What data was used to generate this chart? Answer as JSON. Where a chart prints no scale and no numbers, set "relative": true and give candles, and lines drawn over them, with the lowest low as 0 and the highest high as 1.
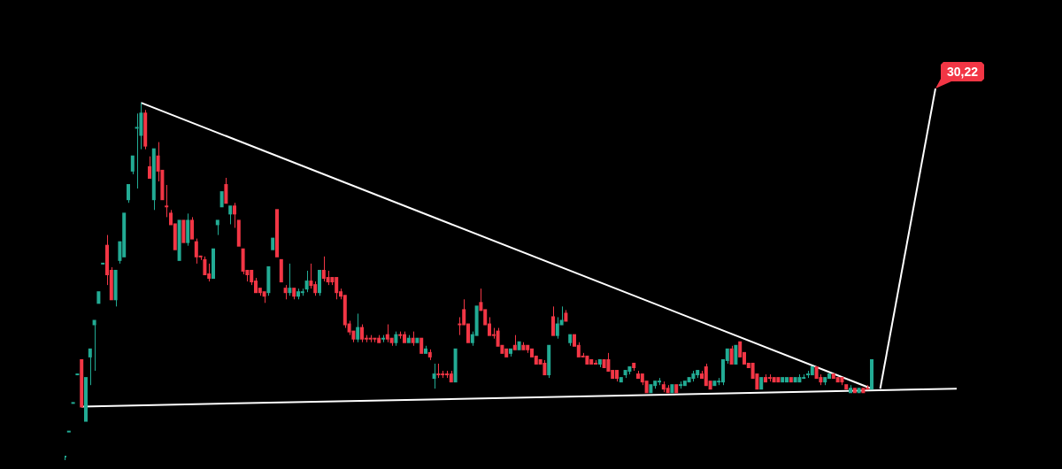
{
  "chart_data": {
    "type": "candlestick",
    "relative": true,
    "legend": false,
    "categories": [
      null,
      null,
      null,
      null,
      null,
      null,
      null,
      null,
      null,
      null,
      null,
      null,
      null,
      null,
      null,
      null,
      null,
      null,
      null,
      null,
      null,
      null,
      null,
      null,
      null,
      null,
      null,
      null,
      null,
      null,
      null,
      null,
      null,
      null,
      null,
      null,
      null,
      null,
      null,
      null,
      null,
      null,
      null,
      null,
      null,
      null,
      null,
      null,
      null,
      null,
      null,
      null,
      null,
      null,
      null,
      null,
      null,
      null,
      null,
      null,
      null,
      null,
      null,
      null,
      null,
      null,
      null,
      null,
      null,
      null,
      null,
      null,
      null,
      null,
      null,
      null,
      null,
      null,
      null,
      null,
      null,
      null,
      null,
      null,
      null,
      null,
      null,
      null,
      null,
      null,
      null,
      null,
      null,
      null,
      null,
      null,
      null,
      null,
      null,
      null,
      null,
      null,
      null,
      null,
      null,
      null,
      null,
      null,
      null,
      null,
      null,
      null,
      null,
      null,
      null,
      null,
      null,
      null,
      null,
      null,
      null,
      null,
      null,
      null,
      null,
      null,
      null,
      null,
      null,
      null,
      null,
      null,
      null,
      null,
      null,
      null,
      null,
      null,
      null,
      null,
      null,
      null,
      null,
      null,
      null,
      null,
      null,
      null,
      null,
      null,
      null,
      null,
      null,
      null,
      null,
      null,
      null,
      null,
      null,
      null,
      null,
      null,
      null,
      null,
      null,
      null,
      null,
      null,
      null,
      null,
      null,
      null,
      null,
      null,
      null,
      null,
      null,
      null,
      null,
      null,
      null,
      null,
      null,
      null,
      null,
      null,
      null,
      null,
      null,
      null,
      null,
      null,
      null,
      null,
      null,
      null,
      null,
      null,
      null,
      null,
      null,
      null,
      null,
      null,
      null,
      null,
      null,
      null,
      null,
      null,
      null
    ],
    "ohlc": [
      [
        0.01,
        0.01,
        0,
        0.01
      ],
      [
        0.08,
        0.08,
        0.08,
        0.08
      ],
      [
        0.16,
        0.16,
        0.16,
        0.16
      ],
      [
        0.24,
        0.24,
        0.24,
        0.24
      ],
      [
        0.28,
        0.28,
        0.15,
        0.15
      ],
      [
        0.11,
        0.23,
        0.11,
        0.23
      ],
      [
        0.29,
        0.31,
        0.21,
        0.31
      ],
      [
        0.38,
        0.39,
        0.25,
        0.39
      ],
      [
        0.44,
        0.47,
        0.44,
        0.47
      ],
      [
        0.55,
        0.55,
        0.55,
        0.55
      ],
      [
        0.6,
        0.63,
        0.49,
        0.52
      ],
      [
        0.53,
        0.54,
        0.45,
        0.45
      ],
      [
        0.45,
        0.53,
        0.43,
        0.53
      ],
      [
        0.56,
        0.61,
        0.55,
        0.61
      ],
      [
        0.57,
        0.69,
        0.57,
        0.69
      ],
      [
        0.73,
        0.77,
        0.72,
        0.77
      ],
      [
        0.81,
        0.85,
        0.8,
        0.85
      ],
      [
        0.93,
        0.97,
        0.76,
        0.93
      ],
      [
        0.91,
        1,
        0.87,
        0.97
      ],
      [
        0.97,
        0.98,
        0.87,
        0.88
      ],
      [
        0.82,
        0.85,
        0.79,
        0.79
      ],
      [
        0.73,
        0.87,
        0.7,
        0.87
      ],
      [
        0.85,
        0.89,
        0.78,
        0.81
      ],
      [
        0.81,
        0.81,
        0.73,
        0.73
      ],
      [
        0.71,
        0.77,
        0.68,
        0.71
      ],
      [
        0.69,
        0.7,
        0.66,
        0.66
      ],
      [
        0.66,
        0.66,
        0.59,
        0.59
      ],
      [
        0.56,
        0.67,
        0.56,
        0.67
      ],
      [
        0.67,
        0.67,
        0.61,
        0.61
      ],
      [
        0.61,
        0.69,
        0.6,
        0.67
      ],
      [
        0.67,
        0.68,
        0.62,
        0.62
      ],
      [
        0.61,
        0.62,
        0.55,
        0.57
      ],
      [
        0.57,
        0.57,
        0.56,
        0.57
      ],
      [
        0.56,
        0.57,
        0.52,
        0.52
      ],
      [
        0.52,
        0.55,
        0.5,
        0.51
      ],
      [
        0.51,
        0.59,
        0.51,
        0.59
      ],
      [
        0.66,
        0.67,
        0.63,
        0.67
      ],
      [
        0.71,
        0.75,
        0.71,
        0.75
      ],
      [
        0.77,
        0.79,
        0.72,
        0.72
      ],
      [
        0.69,
        0.71,
        0.66,
        0.71
      ],
      [
        0.71,
        0.72,
        0.65,
        0.69
      ],
      [
        0.67,
        0.67,
        0.6,
        0.6
      ],
      [
        0.59,
        0.59,
        0.52,
        0.53
      ],
      [
        0.53,
        0.53,
        0.5,
        0.52
      ],
      [
        0.53,
        0.53,
        0.49,
        0.5
      ],
      [
        0.5,
        0.51,
        0.47,
        0.47
      ],
      [
        0.48,
        0.48,
        0.46,
        0.47
      ],
      [
        0.47,
        0.47,
        0.44,
        0.46
      ],
      [
        0.47,
        0.54,
        0.46,
        0.54
      ],
      [
        0.59,
        0.62,
        0.59,
        0.62
      ],
      [
        0.7,
        0.7,
        0.57,
        0.57
      ],
      [
        0.56,
        0.56,
        0.5,
        0.5
      ],
      [
        0.48,
        0.49,
        0.45,
        0.47
      ],
      [
        0.47,
        0.55,
        0.46,
        0.48
      ],
      [
        0.48,
        0.48,
        0.45,
        0.46
      ],
      [
        0.46,
        0.48,
        0.45,
        0.47
      ],
      [
        0.47,
        0.48,
        0.46,
        0.47
      ],
      [
        0.48,
        0.53,
        0.47,
        0.5
      ],
      [
        0.5,
        0.55,
        0.48,
        0.49
      ],
      [
        0.49,
        0.5,
        0.46,
        0.47
      ],
      [
        0.47,
        0.53,
        0.46,
        0.53
      ],
      [
        0.53,
        0.57,
        0.5,
        0.51
      ],
      [
        0.51,
        0.53,
        0.49,
        0.5
      ],
      [
        0.51,
        0.51,
        0.49,
        0.5
      ],
      [
        0.51,
        0.51,
        0.45,
        0.47
      ],
      [
        0.47,
        0.48,
        0.45,
        0.46
      ],
      [
        0.46,
        0.46,
        0.37,
        0.38
      ],
      [
        0.38,
        0.39,
        0.35,
        0.36
      ],
      [
        0.36,
        0.36,
        0.33,
        0.34
      ],
      [
        0.34,
        0.41,
        0.33,
        0.37
      ],
      [
        0.37,
        0.38,
        0.33,
        0.34
      ],
      [
        0.34,
        0.35,
        0.33,
        0.34
      ],
      [
        0.34,
        0.35,
        0.33,
        0.34
      ],
      [
        0.34,
        0.34,
        0.33,
        0.34
      ],
      [
        0.34,
        0.35,
        0.33,
        0.33
      ],
      [
        0.34,
        0.35,
        0.33,
        0.34
      ],
      [
        0.35,
        0.38,
        0.33,
        0.34
      ],
      [
        0.34,
        0.34,
        0.32,
        0.33
      ],
      [
        0.33,
        0.36,
        0.32,
        0.35
      ],
      [
        0.35,
        0.36,
        0.34,
        0.35
      ],
      [
        0.35,
        0.36,
        0.33,
        0.33
      ],
      [
        0.33,
        0.35,
        0.33,
        0.34
      ],
      [
        0.34,
        0.36,
        0.32,
        0.33
      ],
      [
        0.33,
        0.34,
        0.33,
        0.34
      ],
      [
        0.34,
        0.34,
        0.3,
        0.3
      ],
      [
        0.3,
        0.32,
        0.3,
        0.31
      ],
      [
        0.3,
        0.31,
        0.28,
        0.29
      ],
      [
        0.23,
        0.27,
        0.2,
        0.24
      ],
      [
        0.24,
        0.27,
        0.23,
        0.24
      ],
      [
        0.24,
        0.25,
        0.23,
        0.24
      ],
      [
        0.24,
        0.25,
        0.23,
        0.24
      ],
      [
        0.24,
        0.25,
        0.22,
        0.22
      ],
      [
        0.22,
        0.31,
        0.22,
        0.31
      ],
      [
        0.38,
        0.4,
        0.35,
        0.38
      ],
      [
        0.42,
        0.45,
        0.38,
        0.38
      ],
      [
        0.38,
        0.38,
        0.33,
        0.33
      ],
      [
        0.33,
        0.36,
        0.32,
        0.35
      ],
      [
        0.35,
        0.43,
        0.35,
        0.43
      ],
      [
        0.44,
        0.48,
        0.42,
        0.42
      ],
      [
        0.42,
        0.42,
        0.38,
        0.38
      ],
      [
        0.38,
        0.4,
        0.35,
        0.35
      ],
      [
        0.35,
        0.37,
        0.34,
        0.35
      ],
      [
        0.36,
        0.37,
        0.32,
        0.32
      ],
      [
        0.32,
        0.32,
        0.3,
        0.3
      ],
      [
        0.31,
        0.31,
        0.29,
        0.29
      ],
      [
        0.3,
        0.31,
        0.29,
        0.31
      ],
      [
        0.32,
        0.35,
        0.31,
        0.31
      ],
      [
        0.31,
        0.33,
        0.31,
        0.33
      ],
      [
        0.32,
        0.33,
        0.31,
        0.31
      ],
      [
        0.32,
        0.32,
        0.3,
        0.31
      ],
      [
        0.31,
        0.31,
        0.29,
        0.29
      ],
      [
        0.29,
        0.29,
        0.27,
        0.27
      ],
      [
        0.28,
        0.28,
        0.27,
        0.27
      ],
      [
        0.27,
        0.28,
        0.24,
        0.24
      ],
      [
        0.24,
        0.32,
        0.23,
        0.32
      ],
      [
        0.4,
        0.43,
        0.35,
        0.35
      ],
      [
        0.35,
        0.4,
        0.34,
        0.38
      ],
      [
        0.38,
        0.43,
        0.38,
        0.39
      ],
      [
        0.41,
        0.42,
        0.39,
        0.39
      ],
      [
        0.33,
        0.35,
        0.32,
        0.35
      ],
      [
        0.35,
        0.35,
        0.32,
        0.32
      ],
      [
        0.32,
        0.33,
        0.29,
        0.29
      ],
      [
        0.29,
        0.3,
        0.29,
        0.29
      ],
      [
        0.29,
        0.29,
        0.27,
        0.27
      ],
      [
        0.28,
        0.28,
        0.27,
        0.27
      ],
      [
        0.27,
        0.28,
        0.27,
        0.27
      ],
      [
        0.27,
        0.28,
        0.26,
        0.28
      ],
      [
        0.28,
        0.28,
        0.26,
        0.26
      ],
      [
        0.28,
        0.3,
        0.25,
        0.25
      ],
      [
        0.25,
        0.25,
        0.23,
        0.23
      ],
      [
        0.25,
        0.25,
        0.22,
        0.23
      ],
      [
        0.22,
        0.23,
        0.22,
        0.23
      ],
      [
        0.24,
        0.25,
        0.23,
        0.25
      ],
      [
        0.25,
        0.26,
        0.24,
        0.26
      ],
      [
        0.27,
        0.27,
        0.25,
        0.26
      ],
      [
        0.24,
        0.25,
        0.23,
        0.23
      ],
      [
        0.24,
        0.24,
        0.21,
        0.22
      ],
      [
        0.22,
        0.22,
        0.19,
        0.19
      ],
      [
        0.19,
        0.21,
        0.19,
        0.21
      ],
      [
        0.21,
        0.22,
        0.2,
        0.22
      ],
      [
        0.22,
        0.23,
        0.21,
        0.22
      ],
      [
        0.21,
        0.22,
        0.19,
        0.2
      ],
      [
        0.2,
        0.21,
        0.19,
        0.19
      ],
      [
        0.19,
        0.21,
        0.19,
        0.21
      ],
      [
        0.21,
        0.21,
        0.19,
        0.19
      ],
      [
        0.21,
        0.22,
        0.2,
        0.21
      ],
      [
        0.21,
        0.22,
        0.21,
        0.22
      ],
      [
        0.22,
        0.23,
        0.22,
        0.23
      ],
      [
        0.23,
        0.25,
        0.22,
        0.24
      ],
      [
        0.24,
        0.25,
        0.23,
        0.25
      ],
      [
        0.24,
        0.25,
        0.23,
        0.23
      ],
      [
        0.26,
        0.27,
        0.21,
        0.21
      ],
      [
        0.22,
        0.22,
        0.2,
        0.2
      ],
      [
        0.21,
        0.22,
        0.21,
        0.22
      ],
      [
        0.22,
        0.23,
        0.21,
        0.22
      ],
      [
        0.22,
        0.28,
        0.21,
        0.28
      ],
      [
        0.28,
        0.31,
        0.27,
        0.31
      ],
      [
        0.31,
        0.32,
        0.27,
        0.27
      ],
      [
        0.27,
        0.32,
        0.27,
        0.32
      ],
      [
        0.33,
        0.33,
        0.29,
        0.29
      ],
      [
        0.3,
        0.3,
        0.27,
        0.27
      ],
      [
        0.27,
        0.27,
        0.26,
        0.26
      ],
      [
        0.27,
        0.27,
        0.23,
        0.23
      ],
      [
        0.24,
        0.24,
        0.2,
        0.2
      ],
      [
        0.2,
        0.23,
        0.2,
        0.23
      ],
      [
        0.23,
        0.24,
        0.22,
        0.22
      ],
      [
        0.23,
        0.24,
        0.22,
        0.23
      ],
      [
        0.23,
        0.23,
        0.22,
        0.22
      ],
      [
        0.23,
        0.23,
        0.22,
        0.22
      ],
      [
        0.22,
        0.23,
        0.22,
        0.23
      ],
      [
        0.22,
        0.23,
        0.22,
        0.23
      ],
      [
        0.23,
        0.23,
        0.22,
        0.22
      ],
      [
        0.22,
        0.23,
        0.22,
        0.23
      ],
      [
        0.22,
        0.24,
        0.22,
        0.23
      ],
      [
        0.23,
        0.24,
        0.23,
        0.23
      ],
      [
        0.24,
        0.25,
        0.23,
        0.24
      ],
      [
        0.24,
        0.26,
        0.24,
        0.26
      ],
      [
        0.26,
        0.26,
        0.23,
        0.23
      ],
      [
        0.23,
        0.24,
        0.21,
        0.22
      ],
      [
        0.22,
        0.23,
        0.21,
        0.23
      ],
      [
        0.23,
        0.24,
        0.23,
        0.24
      ],
      [
        0.24,
        0.24,
        0.23,
        0.23
      ],
      [
        0.23,
        0.23,
        0.22,
        0.22
      ],
      [
        0.23,
        0.23,
        0.21,
        0.22
      ],
      [
        0.21,
        0.21,
        0.2,
        0.2
      ],
      [
        0.19,
        0.21,
        0.19,
        0.2
      ],
      [
        0.2,
        0.2,
        0.19,
        0.19
      ],
      [
        0.19,
        0.2,
        0.19,
        0.2
      ],
      [
        0.2,
        0.2,
        0.19,
        0.19
      ],
      [
        0.2,
        0.21,
        0.2,
        0.2
      ],
      [
        0.2,
        0.28,
        0.2,
        0.28
      ],
      null,
      null,
      null,
      null,
      null,
      null,
      null,
      null,
      null,
      null,
      null,
      null,
      null,
      null,
      null,
      null,
      null,
      null,
      null,
      null
    ],
    "colors": [
      "#22ab94",
      "#22ab94",
      "#22ab94",
      "#22ab94",
      "#f23645",
      "#22ab94",
      "#22ab94",
      "#22ab94",
      "#22ab94",
      "#22ab94",
      "#f23645",
      "#f23645",
      "#22ab94",
      "#22ab94",
      "#22ab94",
      "#22ab94",
      "#22ab94",
      "#22ab94",
      "#22ab94",
      "#f23645",
      "#f23645",
      "#22ab94",
      "#f23645",
      "#f23645",
      "#f23645",
      "#f23645",
      "#f23645",
      "#22ab94",
      "#f23645",
      "#22ab94",
      "#f23645",
      "#f23645",
      "#f23645",
      "#f23645",
      "#f23645",
      "#22ab94",
      "#22ab94",
      "#22ab94",
      "#f23645",
      "#22ab94",
      "#f23645",
      "#f23645",
      "#f23645",
      "#f23645",
      "#f23645",
      "#f23645",
      "#f23645",
      "#f23645",
      "#22ab94",
      "#22ab94",
      "#f23645",
      "#f23645",
      "#f23645",
      "#22ab94",
      "#f23645",
      "#22ab94",
      "#22ab94",
      "#22ab94",
      "#f23645",
      "#f23645",
      "#22ab94",
      "#f23645",
      "#f23645",
      "#f23645",
      "#f23645",
      "#f23645",
      "#f23645",
      "#f23645",
      "#f23645",
      "#22ab94",
      "#f23645",
      "#f23645",
      "#f23645",
      "#f23645",
      "#f23645",
      "#22ab94",
      "#f23645",
      "#f23645",
      "#22ab94",
      "#f23645",
      "#f23645",
      "#22ab94",
      "#f23645",
      "#22ab94",
      "#f23645",
      "#22ab94",
      "#f23645",
      "#22ab94",
      "#f23645",
      "#f23645",
      "#f23645",
      "#f23645",
      "#22ab94",
      "#f23645",
      "#f23645",
      "#f23645",
      "#22ab94",
      "#22ab94",
      "#f23645",
      "#f23645",
      "#f23645",
      "#f23645",
      "#f23645",
      "#f23645",
      "#f23645",
      "#22ab94",
      "#f23645",
      "#22ab94",
      "#f23645",
      "#f23645",
      "#f23645",
      "#f23645",
      "#f23645",
      "#f23645",
      "#22ab94",
      "#f23645",
      "#22ab94",
      "#22ab94",
      "#f23645",
      "#22ab94",
      "#f23645",
      "#f23645",
      "#f23645",
      "#f23645",
      "#f23645",
      "#f23645",
      "#22ab94",
      "#f23645",
      "#f23645",
      "#f23645",
      "#f23645",
      "#22ab94",
      "#22ab94",
      "#22ab94",
      "#f23645",
      "#f23645",
      "#f23645",
      "#f23645",
      "#22ab94",
      "#22ab94",
      "#22ab94",
      "#f23645",
      "#f23645",
      "#22ab94",
      "#f23645",
      "#22ab94",
      "#22ab94",
      "#22ab94",
      "#22ab94",
      "#22ab94",
      "#f23645",
      "#f23645",
      "#f23645",
      "#22ab94",
      "#22ab94",
      "#22ab94",
      "#22ab94",
      "#f23645",
      "#22ab94",
      "#f23645",
      "#f23645",
      "#f23645",
      "#f23645",
      "#f23645",
      "#22ab94",
      "#f23645",
      "#f23645",
      "#f23645",
      "#f23645",
      "#22ab94",
      "#22ab94",
      "#f23645",
      "#22ab94",
      "#22ab94",
      "#22ab94",
      "#22ab94",
      "#22ab94",
      "#f23645",
      "#f23645",
      "#22ab94",
      "#22ab94",
      "#f23645",
      "#f23645",
      "#f23645",
      "#f23645",
      "#22ab94",
      "#f23645",
      "#22ab94",
      "#f23645",
      "#f23645",
      "#22ab94",
      null,
      null,
      null,
      null,
      null,
      null,
      null,
      null,
      null,
      null,
      null,
      null,
      null,
      null,
      null,
      null,
      null,
      null,
      null,
      null
    ],
    "series": [
      {
        "type": "line",
        "color": "#ffffff",
        "values": [
          null,
          null,
          null,
          null,
          null,
          null,
          null,
          null,
          null,
          null,
          null,
          null,
          null,
          null,
          null,
          null,
          null,
          null,
          1,
          null,
          null,
          null,
          null,
          null,
          null,
          null,
          null,
          null,
          null,
          null,
          null,
          null,
          null,
          null,
          null,
          null,
          null,
          null,
          null,
          null,
          null,
          null,
          null,
          null,
          null,
          null,
          null,
          null,
          null,
          null,
          null,
          null,
          null,
          null,
          null,
          null,
          null,
          null,
          null,
          null,
          null,
          null,
          null,
          null,
          null,
          null,
          null,
          null,
          null,
          null,
          null,
          null,
          null,
          null,
          null,
          null,
          null,
          null,
          null,
          null,
          null,
          null,
          null,
          null,
          null,
          null,
          null,
          null,
          null,
          null,
          null,
          null,
          null,
          null,
          null,
          null,
          null,
          null,
          null,
          null,
          null,
          null,
          null,
          null,
          null,
          null,
          null,
          null,
          null,
          null,
          null,
          null,
          null,
          null,
          null,
          null,
          null,
          null,
          null,
          null,
          null,
          null,
          null,
          null,
          null,
          null,
          null,
          null,
          null,
          null,
          null,
          null,
          null,
          null,
          null,
          null,
          null,
          null,
          null,
          null,
          null,
          null,
          null,
          null,
          null,
          null,
          null,
          null,
          null,
          null,
          null,
          null,
          null,
          null,
          null,
          null,
          null,
          null,
          null,
          null,
          null,
          null,
          null,
          null,
          null,
          null,
          null,
          null,
          null,
          null,
          null,
          null,
          null,
          null,
          null,
          null,
          null,
          null,
          null,
          null,
          null,
          null,
          null,
          null,
          null,
          null,
          null,
          null,
          null,
          null,
          0.2,
          null,
          null,
          null,
          null,
          null,
          null,
          null,
          null,
          null,
          null,
          null,
          null,
          null,
          null,
          null,
          null,
          null,
          null,
          null,
          null
        ]
      },
      {
        "type": "line",
        "color": "#ffffff",
        "values": [
          null,
          null,
          null,
          null,
          0.15,
          null,
          null,
          null,
          null,
          null,
          null,
          null,
          null,
          null,
          null,
          null,
          null,
          null,
          null,
          null,
          null,
          null,
          null,
          null,
          null,
          null,
          null,
          null,
          null,
          null,
          null,
          null,
          null,
          null,
          null,
          null,
          null,
          null,
          null,
          null,
          null,
          null,
          null,
          null,
          null,
          null,
          null,
          null,
          null,
          null,
          null,
          null,
          null,
          null,
          null,
          null,
          null,
          null,
          null,
          null,
          null,
          null,
          null,
          null,
          null,
          null,
          null,
          null,
          null,
          null,
          null,
          null,
          null,
          null,
          null,
          null,
          null,
          null,
          null,
          null,
          null,
          null,
          null,
          null,
          null,
          null,
          null,
          null,
          null,
          null,
          null,
          null,
          null,
          null,
          null,
          null,
          null,
          null,
          null,
          null,
          null,
          null,
          null,
          null,
          null,
          null,
          null,
          null,
          null,
          null,
          null,
          null,
          null,
          null,
          null,
          null,
          null,
          null,
          null,
          null,
          null,
          null,
          null,
          null,
          null,
          null,
          null,
          null,
          null,
          null,
          null,
          null,
          null,
          null,
          null,
          null,
          null,
          null,
          null,
          null,
          null,
          null,
          null,
          null,
          null,
          null,
          null,
          null,
          null,
          null,
          null,
          null,
          null,
          null,
          null,
          null,
          null,
          null,
          null,
          null,
          null,
          null,
          null,
          null,
          null,
          null,
          null,
          null,
          null,
          null,
          null,
          null,
          null,
          null,
          null,
          null,
          null,
          null,
          null,
          null,
          null,
          null,
          null,
          null,
          null,
          null,
          null,
          null,
          null,
          null,
          null,
          null,
          null,
          null,
          null,
          null,
          null,
          null,
          null,
          null,
          null,
          null,
          null,
          null,
          null,
          null,
          null,
          null,
          null,
          null,
          0.2
        ]
      },
      {
        "type": "line",
        "color": "#ffffff",
        "values": [
          null,
          null,
          null,
          null,
          null,
          null,
          null,
          null,
          null,
          null,
          null,
          null,
          null,
          null,
          null,
          null,
          null,
          null,
          null,
          null,
          null,
          null,
          null,
          null,
          null,
          null,
          null,
          null,
          null,
          null,
          null,
          null,
          null,
          null,
          null,
          null,
          null,
          null,
          null,
          null,
          null,
          null,
          null,
          null,
          null,
          null,
          null,
          null,
          null,
          null,
          null,
          null,
          null,
          null,
          null,
          null,
          null,
          null,
          null,
          null,
          null,
          null,
          null,
          null,
          null,
          null,
          null,
          null,
          null,
          null,
          null,
          null,
          null,
          null,
          null,
          null,
          null,
          null,
          null,
          null,
          null,
          null,
          null,
          null,
          null,
          null,
          null,
          null,
          null,
          null,
          null,
          null,
          null,
          null,
          null,
          null,
          null,
          null,
          null,
          null,
          null,
          null,
          null,
          null,
          null,
          null,
          null,
          null,
          null,
          null,
          null,
          null,
          null,
          null,
          null,
          null,
          null,
          null,
          null,
          null,
          null,
          null,
          null,
          null,
          null,
          null,
          null,
          null,
          null,
          null,
          null,
          null,
          null,
          null,
          null,
          null,
          null,
          null,
          null,
          null,
          null,
          null,
          null,
          null,
          null,
          null,
          null,
          null,
          null,
          null,
          null,
          null,
          null,
          null,
          null,
          null,
          null,
          null,
          null,
          null,
          null,
          null,
          null,
          null,
          null,
          null,
          null,
          null,
          null,
          null,
          null,
          null,
          null,
          null,
          null,
          null,
          null,
          null,
          null,
          null,
          null,
          null,
          null,
          null,
          null,
          null,
          null,
          null,
          null,
          null,
          null,
          null,
          0.2,
          null,
          null,
          null,
          null,
          null,
          null,
          null,
          null,
          null,
          null,
          null,
          null,
          1.04,
          null,
          null,
          null,
          null,
          null
        ]
      }
    ],
    "annotations": [
      "30,22"
    ]
  }
}
